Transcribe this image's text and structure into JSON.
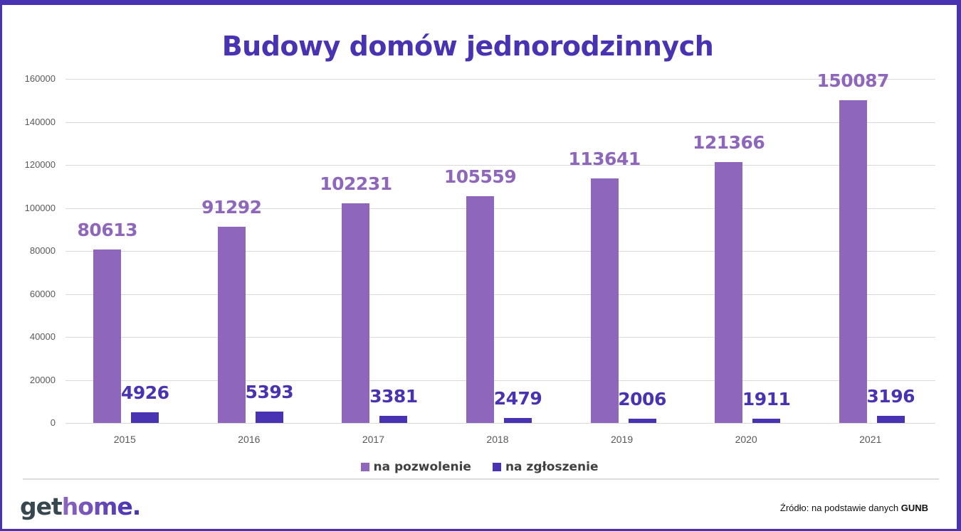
{
  "title": "Budowy domów jednorodzinnych",
  "colors": {
    "frame": "#4a33b3",
    "title": "#4a33b3",
    "na_pozwolenie": "#8e67bd",
    "na_zgloszenie": "#4a33b3",
    "logo_get": "#37474f",
    "logo_home_start": "#8e67bd",
    "logo_home_end": "#4a33b3"
  },
  "legend": {
    "items": [
      {
        "label": "na pozwolenie",
        "color": "#8e67bd"
      },
      {
        "label": "na zgłoszenie",
        "color": "#4a33b3"
      }
    ]
  },
  "footer": {
    "logo": {
      "part1": "get",
      "part2": "home",
      "part3": "."
    },
    "source_prefix": "Źródło: na podstawie danych ",
    "source_bold": "GUNB"
  },
  "chart_data": {
    "type": "bar",
    "title": "Budowy domów jednorodzinnych",
    "xlabel": "",
    "ylabel": "",
    "categories": [
      "2015",
      "2016",
      "2017",
      "2018",
      "2019",
      "2020",
      "2021"
    ],
    "series": [
      {
        "name": "na pozwolenie",
        "color": "#8e67bd",
        "values": [
          80613,
          91292,
          102231,
          105559,
          113641,
          121366,
          150087
        ]
      },
      {
        "name": "na zgłoszenie",
        "color": "#4a33b3",
        "values": [
          4926,
          5393,
          3381,
          2479,
          2006,
          1911,
          3196
        ]
      }
    ],
    "yticks": [
      "0",
      "20000",
      "40000",
      "60000",
      "80000",
      "100000",
      "120000",
      "140000",
      "160000"
    ],
    "ylim": [
      0,
      160000
    ],
    "grid": true,
    "legend_position": "bottom",
    "data_labels": true
  }
}
